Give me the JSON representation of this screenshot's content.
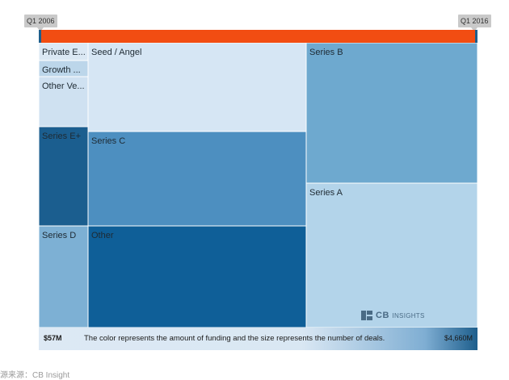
{
  "timeline": {
    "start_label": "Q1 2006",
    "end_label": "Q1 2016",
    "bar_color": "#f24d12",
    "handle_color": "#1d5e8c"
  },
  "chart_data": {
    "type": "treemap",
    "note": "The color represents the amount of funding and the size represents the number of deals.",
    "color_scale": {
      "min_label": "$57M",
      "max_label": "$4,660M",
      "min_color": "#dde9f4",
      "max_color": "#1d5e8c"
    },
    "tiles": [
      {
        "name": "Private E...",
        "color": "#dbe8f4"
      },
      {
        "name": "Growth ...",
        "color": "#bcd6ea"
      },
      {
        "name": "Other Ve...",
        "color": "#cfe1f1"
      },
      {
        "name": "Series E+",
        "color": "#1b5e8f"
      },
      {
        "name": "Series D",
        "color": "#7db0d4"
      },
      {
        "name": "Seed / Angel",
        "color": "#d6e6f4"
      },
      {
        "name": "Series C",
        "color": "#4d8fc0"
      },
      {
        "name": "Other",
        "color": "#0f5f98"
      },
      {
        "name": "Series B",
        "color": "#6ea9cf"
      },
      {
        "name": "Series A",
        "color": "#b3d4ea"
      }
    ]
  },
  "branding": {
    "logo_text": "CB",
    "logo_subtext": "INSIGHTS"
  },
  "source_text": "源来源：CB Insight"
}
